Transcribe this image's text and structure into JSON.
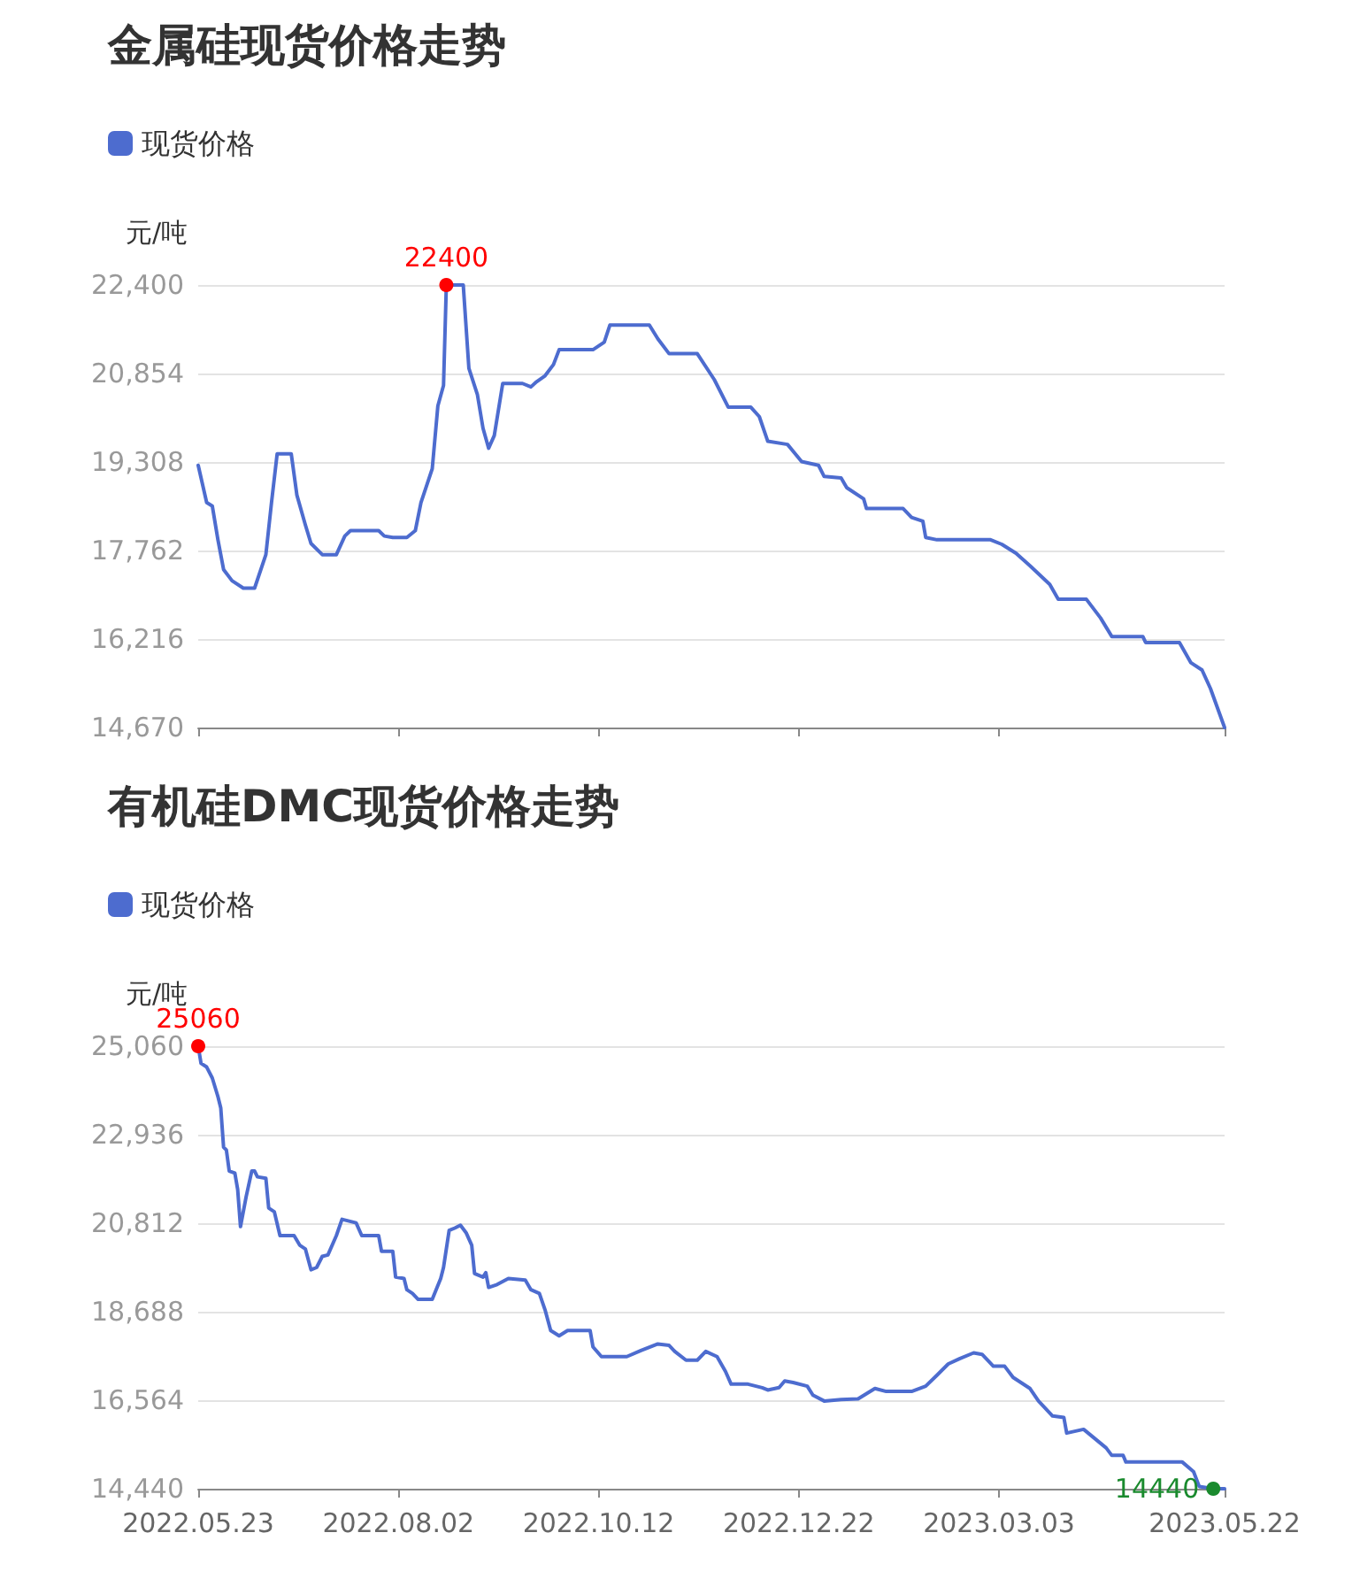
{
  "chart_data": [
    {
      "type": "line",
      "title": "金属硅现货价格走势",
      "ylabel": "元/吨",
      "legend": "top left",
      "grid": "y",
      "marker": "none",
      "line_style": "solid",
      "tick_labels": "y",
      "xlim": [
        "2022-05-23",
        "2023-05-22"
      ],
      "xticks": [
        {
          "value": "2022-05-23",
          "label": null
        },
        {
          "value": "2022-08-02",
          "label": null
        },
        {
          "value": "2022-10-12",
          "label": null
        },
        {
          "value": "2022-12-22",
          "label": null
        },
        {
          "value": "2023-03-03",
          "label": null
        },
        {
          "value": "2023-05-22",
          "label": null
        }
      ],
      "ylim": [
        14670,
        22400
      ],
      "yticks": [
        {
          "value": 14670,
          "label": "14,670"
        },
        {
          "value": 16216,
          "label": "16,216"
        },
        {
          "value": 17762,
          "label": "17,762"
        },
        {
          "value": 19308,
          "label": "19,308"
        },
        {
          "value": 20854,
          "label": "20,854"
        },
        {
          "value": 22400,
          "label": "22,400"
        }
      ],
      "annotations": [
        {
          "text": "22400",
          "x": "2022-08-19",
          "y": 22400
        }
      ],
      "series": [
        {
          "name": "现货价格",
          "color": "#4d6ccf",
          "x": [
            "2022-05-23",
            "2022-05-26",
            "2022-05-28",
            "2022-05-30",
            "2022-06-01",
            "2022-06-04",
            "2022-06-08",
            "2022-06-12",
            "2022-06-16",
            "2022-06-18",
            "2022-06-20",
            "2022-06-25",
            "2022-06-27",
            "2022-06-30",
            "2022-07-02",
            "2022-07-06",
            "2022-07-11",
            "2022-07-14",
            "2022-07-16",
            "2022-07-26",
            "2022-07-28",
            "2022-07-31",
            "2022-08-05",
            "2022-08-08",
            "2022-08-10",
            "2022-08-14",
            "2022-08-16",
            "2022-08-18",
            "2022-08-19",
            "2022-08-25",
            "2022-08-27",
            "2022-08-30",
            "2022-09-01",
            "2022-09-03",
            "2022-09-05",
            "2022-09-08",
            "2022-09-15",
            "2022-09-18",
            "2022-09-20",
            "2022-09-23",
            "2022-09-26",
            "2022-09-28",
            "2022-10-10",
            "2022-10-14",
            "2022-10-16",
            "2022-10-30",
            "2022-11-02",
            "2022-11-06",
            "2022-11-16",
            "2022-11-22",
            "2022-11-27",
            "2022-12-05",
            "2022-12-08",
            "2022-12-11",
            "2022-12-18",
            "2022-12-23",
            "2022-12-29",
            "2022-12-31",
            "2023-01-06",
            "2023-01-08",
            "2023-01-14",
            "2023-01-15",
            "2023-01-28",
            "2023-01-31",
            "2023-02-04",
            "2023-02-05",
            "2023-02-09",
            "2023-02-28",
            "2023-03-04",
            "2023-03-09",
            "2023-03-14",
            "2023-03-21",
            "2023-03-24",
            "2023-04-03",
            "2023-04-08",
            "2023-04-12",
            "2023-04-23",
            "2023-04-24",
            "2023-05-06",
            "2023-05-10",
            "2023-05-14",
            "2023-05-17",
            "2023-05-22"
          ],
          "values": [
            19250,
            18600,
            18540,
            17950,
            17430,
            17235,
            17105,
            17105,
            17690,
            18600,
            19450,
            19450,
            18730,
            18210,
            17885,
            17690,
            17690,
            18015,
            18110,
            18110,
            18015,
            17990,
            17990,
            18110,
            18600,
            19190,
            20290,
            20645,
            22400,
            22400,
            20945,
            20490,
            19900,
            19550,
            19770,
            20680,
            20680,
            20620,
            20710,
            20815,
            21010,
            21270,
            21270,
            21400,
            21700,
            21700,
            21460,
            21200,
            21200,
            20750,
            20265,
            20265,
            20100,
            19670,
            19615,
            19315,
            19250,
            19055,
            19030,
            18860,
            18665,
            18495,
            18495,
            18340,
            18275,
            17990,
            17950,
            17950,
            17870,
            17715,
            17495,
            17170,
            16910,
            16910,
            16585,
            16260,
            16260,
            16155,
            16155,
            15805,
            15675,
            15350,
            14670
          ]
        }
      ]
    },
    {
      "type": "line",
      "title": "有机硅DMC现货价格走势",
      "ylabel": "元/吨",
      "legend": "top left",
      "grid": "y",
      "marker": "none",
      "line_style": "solid",
      "xlim": [
        "2022-05-23",
        "2023-05-22"
      ],
      "xticks": [
        {
          "value": "2022-05-23",
          "label": "2022.05.23"
        },
        {
          "value": "2022-08-02",
          "label": "2022.08.02"
        },
        {
          "value": "2022-10-12",
          "label": "2022.10.12"
        },
        {
          "value": "2022-12-22",
          "label": "2022.12.22"
        },
        {
          "value": "2023-03-03",
          "label": "2023.03.03"
        },
        {
          "value": "2023-05-22",
          "label": "2023.05.22"
        }
      ],
      "ylim": [
        14440,
        25060
      ],
      "yticks": [
        {
          "value": 14440,
          "label": "14,440"
        },
        {
          "value": 16564,
          "label": "16,564"
        },
        {
          "value": 18688,
          "label": "18,688"
        },
        {
          "value": 20812,
          "label": "20,812"
        },
        {
          "value": 22936,
          "label": "22,936"
        },
        {
          "value": 25060,
          "label": "25,060"
        }
      ],
      "annotations": [
        {
          "text": "25060",
          "x": "2022-05-23",
          "y": 25060
        },
        {
          "text": "14440",
          "x": "2023-05-18",
          "y": 14440
        }
      ],
      "series": [
        {
          "name": "现货价格",
          "color": "#4d6ccf",
          "x": [
            "2022-05-23",
            "2022-05-24",
            "2022-05-26",
            "2022-05-28",
            "2022-05-30",
            "2022-05-31",
            "2022-06-01",
            "2022-06-02",
            "2022-06-03",
            "2022-06-05",
            "2022-06-06",
            "2022-06-07",
            "2022-06-09",
            "2022-06-11",
            "2022-06-12",
            "2022-06-13",
            "2022-06-16",
            "2022-06-17",
            "2022-06-19",
            "2022-06-21",
            "2022-06-26",
            "2022-06-28",
            "2022-06-30",
            "2022-07-02",
            "2022-07-04",
            "2022-07-06",
            "2022-07-08",
            "2022-07-11",
            "2022-07-13",
            "2022-07-18",
            "2022-07-20",
            "2022-07-26",
            "2022-07-27",
            "2022-07-31",
            "2022-08-01",
            "2022-08-04",
            "2022-08-05",
            "2022-08-07",
            "2022-08-09",
            "2022-08-14",
            "2022-08-17",
            "2022-08-18",
            "2022-08-20",
            "2022-08-22",
            "2022-08-24",
            "2022-08-26",
            "2022-08-28",
            "2022-08-29",
            "2022-09-01",
            "2022-09-02",
            "2022-09-03",
            "2022-09-06",
            "2022-09-10",
            "2022-09-16",
            "2022-09-18",
            "2022-09-21",
            "2022-09-23",
            "2022-09-25",
            "2022-09-28",
            "2022-10-01",
            "2022-10-09",
            "2022-10-10",
            "2022-10-13",
            "2022-10-22",
            "2022-10-27",
            "2022-11-02",
            "2022-11-06",
            "2022-11-08",
            "2022-11-12",
            "2022-11-16",
            "2022-11-19",
            "2022-11-23",
            "2022-11-26",
            "2022-11-28",
            "2022-12-04",
            "2022-12-09",
            "2022-12-11",
            "2022-12-15",
            "2022-12-17",
            "2022-12-20",
            "2022-12-25",
            "2022-12-27",
            "2022-12-31",
            "2023-01-06",
            "2023-01-12",
            "2023-01-18",
            "2023-01-22",
            "2023-01-31",
            "2023-02-05",
            "2023-02-09",
            "2023-02-13",
            "2023-02-17",
            "2023-02-22",
            "2023-02-25",
            "2023-03-01",
            "2023-03-05",
            "2023-03-08",
            "2023-03-14",
            "2023-03-17",
            "2023-03-22",
            "2023-03-26",
            "2023-03-27",
            "2023-04-02",
            "2023-04-10",
            "2023-04-12",
            "2023-04-16",
            "2023-04-17",
            "2023-05-07",
            "2023-05-11",
            "2023-05-13",
            "2023-05-18",
            "2023-05-22"
          ],
          "values": [
            25060,
            24650,
            24560,
            24295,
            23850,
            23580,
            22635,
            22565,
            22065,
            22015,
            21620,
            20730,
            21445,
            22065,
            22065,
            21925,
            21890,
            21175,
            21085,
            20515,
            20515,
            20285,
            20195,
            19695,
            19750,
            20015,
            20050,
            20515,
            20905,
            20820,
            20515,
            20515,
            20140,
            20140,
            19520,
            19485,
            19215,
            19125,
            18985,
            18985,
            19485,
            19750,
            20640,
            20695,
            20765,
            20585,
            20285,
            19605,
            19520,
            19625,
            19270,
            19340,
            19485,
            19445,
            19215,
            19125,
            18735,
            18235,
            18110,
            18235,
            18235,
            17845,
            17610,
            17610,
            17755,
            17915,
            17880,
            17735,
            17525,
            17525,
            17735,
            17610,
            17255,
            16950,
            16950,
            16865,
            16810,
            16865,
            17025,
            16990,
            16900,
            16685,
            16545,
            16580,
            16595,
            16845,
            16775,
            16775,
            16900,
            17165,
            17435,
            17560,
            17700,
            17665,
            17380,
            17380,
            17110,
            16845,
            16545,
            16185,
            16150,
            15775,
            15865,
            15420,
            15240,
            15240,
            15080,
            15080,
            14850,
            14495,
            14440,
            14440
          ]
        }
      ]
    }
  ]
}
